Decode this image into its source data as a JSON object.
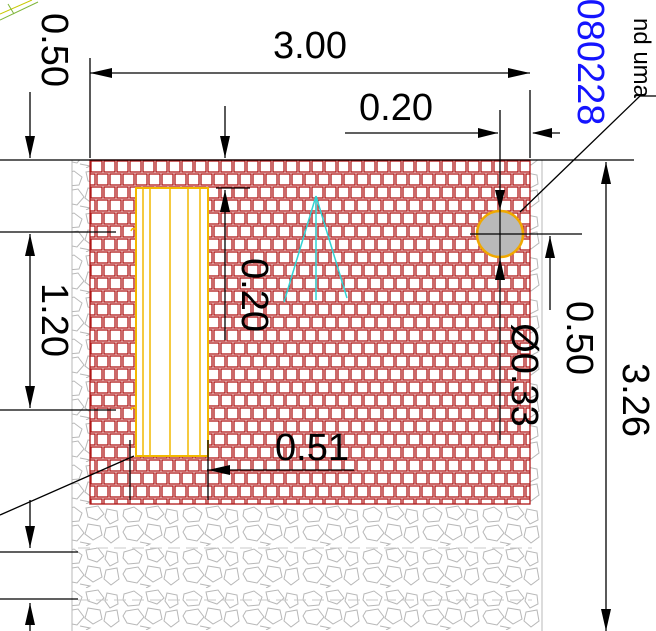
{
  "drawing": {
    "dimensions": {
      "top_overall": "3.00",
      "top_right": "0.20",
      "left_top": "0.50",
      "left_middle": "1.20",
      "inner_vertical": "0.20",
      "inner_horizontal": "0.51",
      "right_pipe_offset": "0.50",
      "right_overall": "3.26",
      "pipe_diameter": "Ø0.33"
    },
    "labels": {
      "blue_code": "080228",
      "corner_note": "nd uma"
    },
    "colors": {
      "brick": "#b01818",
      "timber": "#f2b800",
      "pipe": "#b9b9b9",
      "pipe_outline": "#f0a800",
      "gravel": "#b8b8b8",
      "cyan": "#31d2d2",
      "blue_text": "#1414ff"
    }
  }
}
